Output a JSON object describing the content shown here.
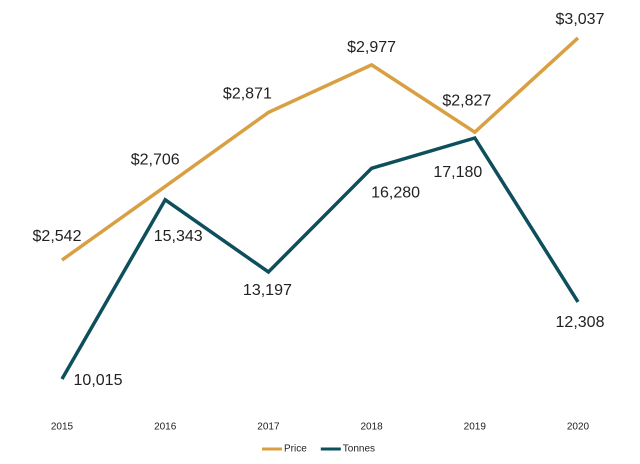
{
  "chart_data": {
    "type": "line",
    "x": [
      "2015",
      "2016",
      "2017",
      "2018",
      "2019",
      "2020"
    ],
    "ylim": [
      2230,
      3077
    ],
    "y2lim": [
      9391,
      20688
    ],
    "legend": "bottom",
    "series": [
      {
        "name": "Price",
        "color": "#d9a043",
        "values": [
          2542,
          2706,
          2871,
          2977,
          2827,
          3037
        ],
        "value_labels": [
          "$2,542",
          "$2,706",
          "$2,871",
          "$2,977",
          "$2,827",
          "$3,037"
        ]
      },
      {
        "name": "Tonnes",
        "color": "#0e4f5c",
        "axis": "y2",
        "values": [
          10015,
          15343,
          13197,
          16280,
          17180,
          12308
        ],
        "value_labels": [
          "10,015",
          "15,343",
          "13,197",
          "16,280",
          "17,180",
          "12,308"
        ]
      }
    ]
  }
}
